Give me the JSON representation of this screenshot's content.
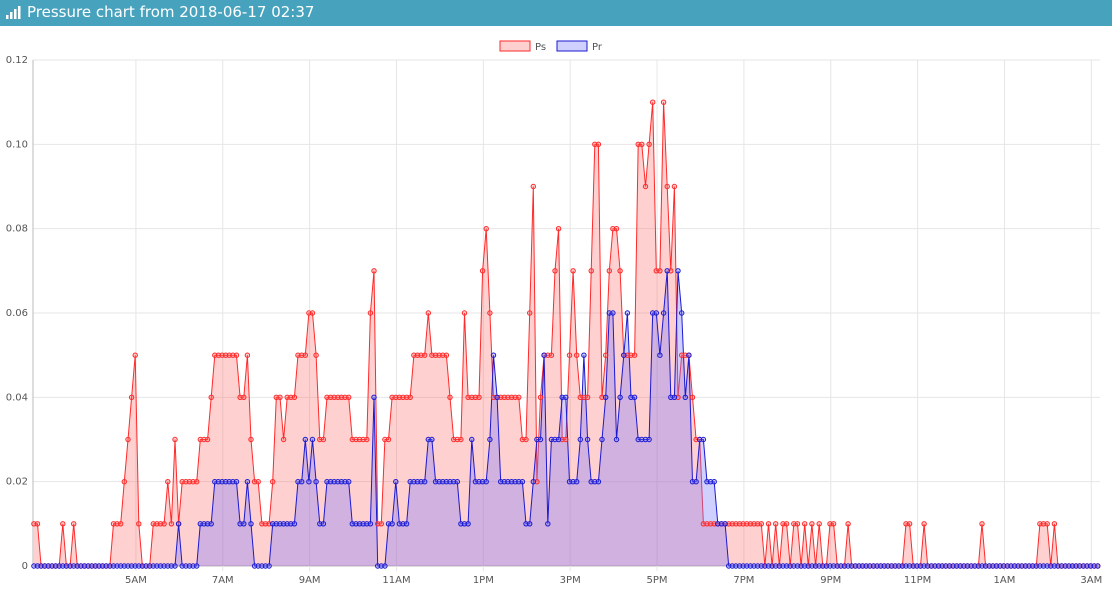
{
  "header": {
    "title": "Pressure chart from 2018-06-17 02:37",
    "icon": "signal-bars-icon"
  },
  "chart_data": {
    "type": "area",
    "legend_position": "top-center",
    "grid": true,
    "x_ticks": [
      "5AM",
      "7AM",
      "9AM",
      "11AM",
      "1PM",
      "3PM",
      "5PM",
      "7PM",
      "9PM",
      "11PM",
      "1AM",
      "3AM"
    ],
    "x_tick_hours": [
      5,
      7,
      9,
      11,
      13,
      15,
      17,
      19,
      21,
      23,
      25,
      27
    ],
    "y_ticks": [
      "0",
      "0.02",
      "0.04",
      "0.06",
      "0.08",
      "0.10",
      "0.12"
    ],
    "ylim": [
      0,
      0.12
    ],
    "x_range_hours": [
      2.63,
      27.2
    ],
    "x_step_minutes": 5,
    "series": [
      {
        "name": "Ps",
        "line_color": "#ff2a2a",
        "fill_color": "rgba(255,99,99,0.3)",
        "values": [
          0.01,
          0.01,
          0,
          0,
          0,
          0,
          0,
          0,
          0.01,
          0,
          0,
          0.01,
          0,
          0,
          0,
          0,
          0,
          0,
          0,
          0,
          0,
          0,
          0.01,
          0.01,
          0.01,
          0.02,
          0.03,
          0.04,
          0.05,
          0.01,
          0,
          0,
          0,
          0.01,
          0.01,
          0.01,
          0.01,
          0.02,
          0.01,
          0.03,
          0.01,
          0.02,
          0.02,
          0.02,
          0.02,
          0.02,
          0.03,
          0.03,
          0.03,
          0.04,
          0.05,
          0.05,
          0.05,
          0.05,
          0.05,
          0.05,
          0.05,
          0.04,
          0.04,
          0.05,
          0.03,
          0.02,
          0.02,
          0.01,
          0.01,
          0.01,
          0.02,
          0.04,
          0.04,
          0.03,
          0.04,
          0.04,
          0.04,
          0.05,
          0.05,
          0.05,
          0.06,
          0.06,
          0.05,
          0.03,
          0.03,
          0.04,
          0.04,
          0.04,
          0.04,
          0.04,
          0.04,
          0.04,
          0.03,
          0.03,
          0.03,
          0.03,
          0.03,
          0.06,
          0.07,
          0.01,
          0.01,
          0.03,
          0.03,
          0.04,
          0.04,
          0.04,
          0.04,
          0.04,
          0.04,
          0.05,
          0.05,
          0.05,
          0.05,
          0.06,
          0.05,
          0.05,
          0.05,
          0.05,
          0.05,
          0.04,
          0.03,
          0.03,
          0.03,
          0.06,
          0.04,
          0.04,
          0.04,
          0.04,
          0.07,
          0.08,
          0.06,
          0.04,
          0.04,
          0.04,
          0.04,
          0.04,
          0.04,
          0.04,
          0.04,
          0.03,
          0.03,
          0.06,
          0.09,
          0.02,
          0.04,
          0.05,
          0.05,
          0.05,
          0.07,
          0.08,
          0.03,
          0.03,
          0.05,
          0.07,
          0.05,
          0.04,
          0.04,
          0.04,
          0.07,
          0.1,
          0.1,
          0.04,
          0.05,
          0.07,
          0.08,
          0.08,
          0.07,
          0.05,
          0.05,
          0.05,
          0.05,
          0.1,
          0.1,
          0.09,
          0.1,
          0.11,
          0.07,
          0.07,
          0.11,
          0.09,
          0.07,
          0.09,
          0.04,
          0.05,
          0.05,
          0.05,
          0.04,
          0.03,
          0.03,
          0.01,
          0.01,
          0.01,
          0.01,
          0.01,
          0.01,
          0.01,
          0.01,
          0.01,
          0.01,
          0.01,
          0.01,
          0.01,
          0.01,
          0.01,
          0.01,
          0.01,
          0,
          0.01,
          0,
          0.01,
          0,
          0.01,
          0.01,
          0,
          0.01,
          0.01,
          0,
          0.01,
          0,
          0.01,
          0,
          0.01,
          0,
          0,
          0.01,
          0.01,
          0,
          0,
          0,
          0.01,
          0,
          0,
          0,
          0,
          0,
          0,
          0,
          0,
          0,
          0,
          0,
          0,
          0,
          0,
          0,
          0.01,
          0.01,
          0,
          0,
          0,
          0.01,
          0,
          0,
          0,
          0,
          0,
          0,
          0,
          0,
          0,
          0,
          0,
          0,
          0,
          0,
          0,
          0.01,
          0,
          0,
          0,
          0,
          0,
          0,
          0,
          0,
          0,
          0,
          0,
          0,
          0,
          0,
          0,
          0.01,
          0.01,
          0.01,
          0,
          0.01,
          0,
          0,
          0,
          0,
          0,
          0,
          0,
          0,
          0,
          0,
          0,
          0,
          0,
          0,
          0,
          0,
          0,
          0,
          0,
          0,
          0,
          0,
          0,
          0,
          0,
          0,
          0,
          0,
          0,
          0,
          0,
          0,
          0,
          0,
          0,
          0,
          0,
          0,
          0,
          0,
          0,
          0,
          0,
          0,
          0,
          0,
          0,
          0,
          0,
          0,
          0,
          0,
          0,
          0,
          0,
          0,
          0
        ]
      },
      {
        "name": "Pr",
        "line_color": "#1a1ad0",
        "fill_color": "rgba(120,120,255,0.35)",
        "values": [
          0,
          0,
          0,
          0,
          0,
          0,
          0,
          0,
          0,
          0,
          0,
          0,
          0,
          0,
          0,
          0,
          0,
          0,
          0,
          0,
          0,
          0,
          0,
          0,
          0,
          0,
          0,
          0,
          0,
          0,
          0,
          0,
          0,
          0,
          0,
          0,
          0,
          0,
          0,
          0,
          0.01,
          0,
          0,
          0,
          0,
          0,
          0.01,
          0.01,
          0.01,
          0.01,
          0.02,
          0.02,
          0.02,
          0.02,
          0.02,
          0.02,
          0.02,
          0.01,
          0.01,
          0.02,
          0.01,
          0,
          0,
          0,
          0,
          0,
          0.01,
          0.01,
          0.01,
          0.01,
          0.01,
          0.01,
          0.01,
          0.02,
          0.02,
          0.03,
          0.02,
          0.03,
          0.02,
          0.01,
          0.01,
          0.02,
          0.02,
          0.02,
          0.02,
          0.02,
          0.02,
          0.02,
          0.01,
          0.01,
          0.01,
          0.01,
          0.01,
          0.01,
          0.04,
          0,
          0,
          0,
          0.01,
          0.01,
          0.02,
          0.01,
          0.01,
          0.01,
          0.02,
          0.02,
          0.02,
          0.02,
          0.02,
          0.03,
          0.03,
          0.02,
          0.02,
          0.02,
          0.02,
          0.02,
          0.02,
          0.02,
          0.01,
          0.01,
          0.01,
          0.03,
          0.02,
          0.02,
          0.02,
          0.02,
          0.03,
          0.05,
          0.04,
          0.02,
          0.02,
          0.02,
          0.02,
          0.02,
          0.02,
          0.02,
          0.01,
          0.01,
          0.02,
          0.03,
          0.03,
          0.05,
          0.01,
          0.03,
          0.03,
          0.03,
          0.04,
          0.04,
          0.02,
          0.02,
          0.02,
          0.03,
          0.05,
          0.03,
          0.02,
          0.02,
          0.02,
          0.03,
          0.04,
          0.06,
          0.06,
          0.03,
          0.04,
          0.05,
          0.06,
          0.04,
          0.04,
          0.03,
          0.03,
          0.03,
          0.03,
          0.06,
          0.06,
          0.05,
          0.06,
          0.07,
          0.04,
          0.04,
          0.07,
          0.06,
          0.04,
          0.05,
          0.02,
          0.02,
          0.03,
          0.03,
          0.02,
          0.02,
          0.02,
          0.01,
          0.01,
          0.01,
          0,
          0,
          0,
          0,
          0,
          0,
          0,
          0,
          0,
          0,
          0,
          0,
          0,
          0,
          0,
          0,
          0,
          0,
          0,
          0,
          0,
          0,
          0,
          0,
          0,
          0,
          0,
          0,
          0,
          0,
          0,
          0,
          0,
          0,
          0,
          0,
          0,
          0,
          0,
          0,
          0,
          0,
          0,
          0,
          0,
          0,
          0,
          0,
          0,
          0,
          0,
          0,
          0,
          0,
          0,
          0,
          0,
          0,
          0,
          0,
          0,
          0,
          0,
          0,
          0,
          0,
          0,
          0,
          0,
          0,
          0,
          0,
          0,
          0,
          0,
          0,
          0,
          0,
          0,
          0,
          0,
          0,
          0,
          0,
          0,
          0,
          0,
          0,
          0,
          0,
          0,
          0,
          0,
          0,
          0,
          0,
          0,
          0,
          0,
          0,
          0,
          0,
          0,
          0,
          0,
          0,
          0,
          0,
          0,
          0,
          0,
          0,
          0,
          0,
          0,
          0,
          0,
          0,
          0,
          0,
          0,
          0,
          0,
          0,
          0,
          0,
          0,
          0,
          0,
          0,
          0,
          0,
          0,
          0,
          0,
          0,
          0,
          0,
          0,
          0,
          0,
          0,
          0,
          0,
          0,
          0,
          0,
          0,
          0,
          0,
          0,
          0
        ]
      }
    ]
  }
}
